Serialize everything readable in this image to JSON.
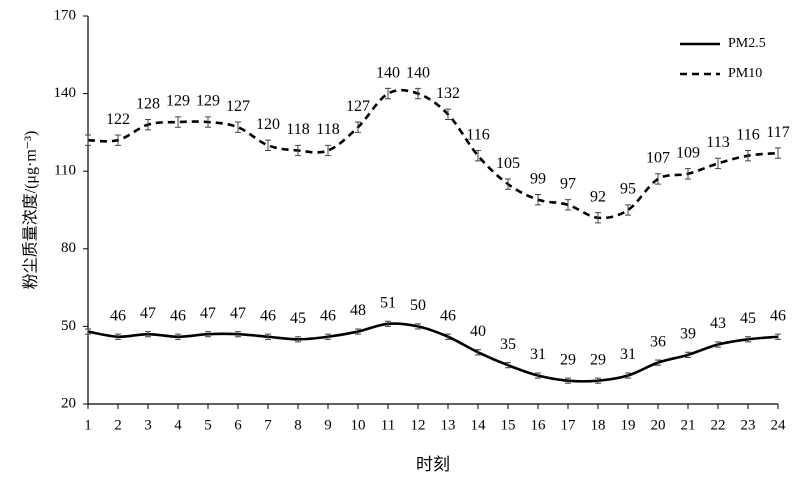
{
  "chart_data": {
    "type": "line",
    "x": [
      1,
      2,
      3,
      4,
      5,
      6,
      7,
      8,
      9,
      10,
      11,
      12,
      13,
      14,
      15,
      16,
      17,
      18,
      19,
      20,
      21,
      22,
      23,
      24
    ],
    "xlim": [
      1,
      24
    ],
    "xticks": [
      1,
      2,
      3,
      4,
      5,
      6,
      7,
      8,
      9,
      10,
      11,
      12,
      13,
      14,
      15,
      16,
      17,
      18,
      19,
      20,
      21,
      22,
      23,
      24
    ],
    "ylim": [
      20,
      170
    ],
    "yticks": [
      20,
      50,
      80,
      110,
      140,
      170
    ],
    "x_label": "时刻",
    "y_label": "粉尘质量浓度/(μg·m⁻³)",
    "legend": "top-right",
    "series": [
      {
        "name": "PM2.5",
        "color": "#000000",
        "linestyle": "solid",
        "values": [
          48,
          46,
          47,
          46,
          47,
          47,
          46,
          45,
          46,
          48,
          51,
          50,
          46,
          40,
          35,
          31,
          29,
          29,
          31,
          36,
          39,
          43,
          45,
          46
        ],
        "errors": [
          1,
          1,
          1,
          1,
          1,
          1,
          1,
          1,
          1,
          1,
          1,
          1,
          1,
          1,
          1,
          1,
          1,
          1,
          1,
          1,
          1,
          1,
          1,
          1
        ]
      },
      {
        "name": "PM10",
        "color": "#000000",
        "linestyle": "dashed",
        "values": [
          122,
          122,
          128,
          129,
          129,
          127,
          120,
          118,
          118,
          127,
          140,
          140,
          132,
          116,
          105,
          99,
          97,
          92,
          95,
          107,
          109,
          113,
          116,
          117
        ],
        "errors": [
          2,
          2,
          2,
          2,
          2,
          2,
          2,
          2,
          2,
          2,
          2,
          2,
          2,
          2,
          2,
          2,
          2,
          2,
          2,
          2,
          2,
          2,
          2,
          2
        ]
      }
    ]
  }
}
